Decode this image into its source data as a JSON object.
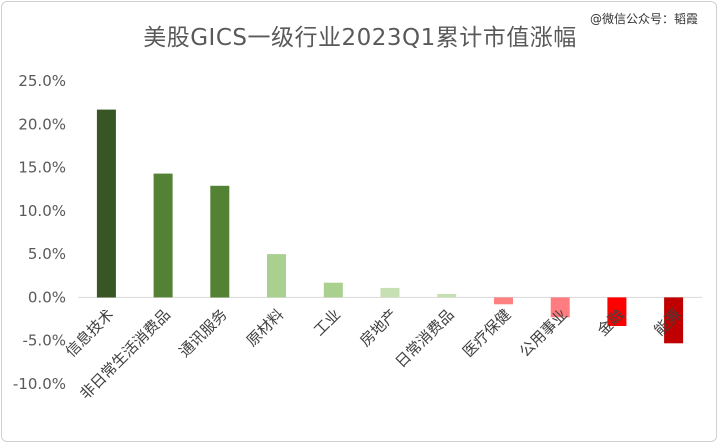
{
  "watermark": "@微信公众号：韬霞",
  "chart_data": {
    "type": "bar",
    "title": "美股GICS一级行业2023Q1累计市值涨幅",
    "xlabel": "",
    "ylabel": "",
    "ylim": [
      -10,
      25
    ],
    "yticks": [
      25,
      20,
      15,
      10,
      5,
      0,
      -5,
      -10
    ],
    "ytick_labels": [
      "25.0%",
      "20.0%",
      "15.0%",
      "10.0%",
      "5.0%",
      "0.0%",
      "-5.0%",
      "-10.0%"
    ],
    "grid": false,
    "legend": "none",
    "categories": [
      "信息技术",
      "非日常生活消费品",
      "通讯服务",
      "原材料",
      "工业",
      "房地产",
      "日常消费品",
      "医疗保健",
      "公用事业",
      "金融",
      "能源"
    ],
    "values": [
      21.7,
      14.3,
      12.9,
      5.0,
      1.7,
      1.1,
      0.4,
      -0.8,
      -2.3,
      -3.3,
      -5.3
    ],
    "colors": [
      "#375623",
      "#548235",
      "#548235",
      "#a9d08e",
      "#a9d08e",
      "#c6e0b4",
      "#c6e0b4",
      "#ff8080",
      "#ff7c80",
      "#ff0000",
      "#c00000"
    ]
  }
}
